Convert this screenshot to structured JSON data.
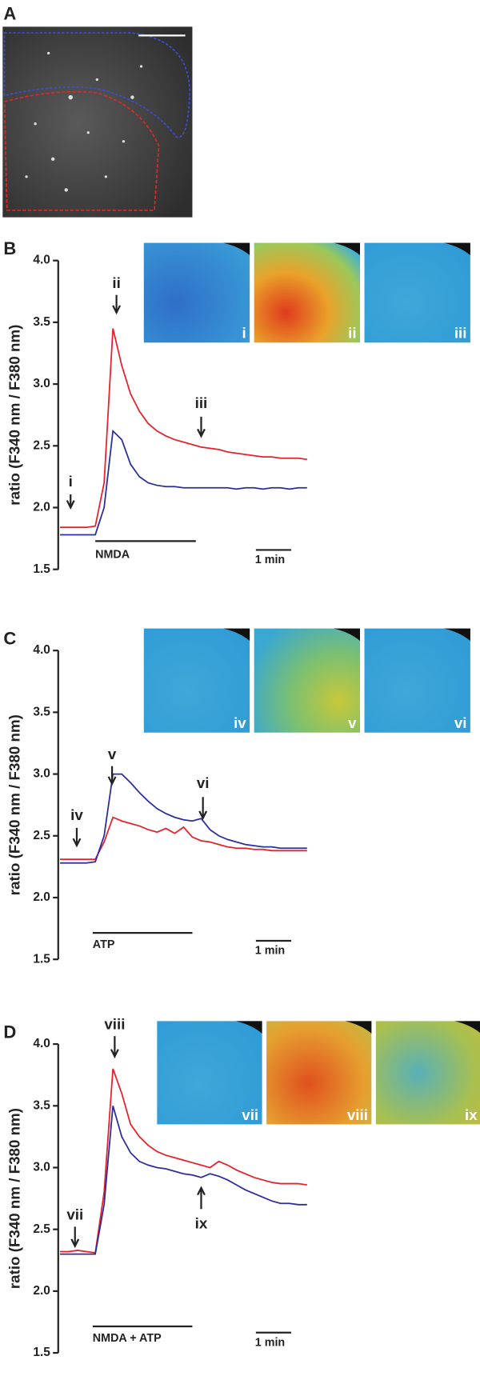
{
  "panel_a_label": "A",
  "chart_data": [
    {
      "type": "line",
      "panel_label": "B",
      "ylabel": "ratio (F340 nm / F380 nm)",
      "ylim": [
        1.5,
        4.0
      ],
      "yticks": [
        1.5,
        {
          "value": 2.0,
          "label": "2.0"
        },
        2.5,
        {
          "value": 3.0,
          "label": "3.0"
        },
        3.5,
        {
          "value": 4.0,
          "label": "4.0"
        }
      ],
      "series": [
        {
          "color": "#e8202a",
          "values": [
            1.84,
            1.84,
            1.84,
            1.84,
            1.85,
            2.2,
            3.45,
            3.15,
            2.92,
            2.78,
            2.68,
            2.62,
            2.58,
            2.55,
            2.53,
            2.51,
            2.49,
            2.48,
            2.47,
            2.45,
            2.44,
            2.43,
            2.42,
            2.41,
            2.41,
            2.4,
            2.4,
            2.4,
            2.39
          ]
        },
        {
          "color": "#2b2d9e",
          "values": [
            1.78,
            1.78,
            1.78,
            1.78,
            1.78,
            2.0,
            2.62,
            2.55,
            2.35,
            2.25,
            2.2,
            2.18,
            2.17,
            2.17,
            2.16,
            2.16,
            2.16,
            2.16,
            2.16,
            2.16,
            2.15,
            2.16,
            2.16,
            2.15,
            2.16,
            2.16,
            2.15,
            2.16,
            2.16
          ]
        }
      ],
      "annotations": [
        "i",
        "ii",
        "iii"
      ],
      "image_labels": [
        "i",
        "ii",
        "iii"
      ],
      "treatment": "NMDA",
      "scale_bar": "1 min"
    },
    {
      "type": "line",
      "panel_label": "C",
      "ylabel": "ratio (F340 nm / F380 nm)",
      "ylim": [
        1.5,
        4.0
      ],
      "yticks": [
        1.5,
        {
          "value": 2.0,
          "label": "2.0"
        },
        2.5,
        {
          "value": 3.0,
          "label": "3.0"
        },
        3.5,
        {
          "value": 4.0,
          "label": "4.0"
        }
      ],
      "series": [
        {
          "color": "#e8202a",
          "values": [
            2.31,
            2.31,
            2.31,
            2.31,
            2.31,
            2.45,
            2.65,
            2.62,
            2.6,
            2.58,
            2.55,
            2.53,
            2.56,
            2.52,
            2.57,
            2.49,
            2.46,
            2.45,
            2.43,
            2.41,
            2.4,
            2.4,
            2.39,
            2.39,
            2.38,
            2.38,
            2.38,
            2.38,
            2.38
          ]
        },
        {
          "color": "#2b2d9e",
          "values": [
            2.28,
            2.28,
            2.28,
            2.28,
            2.29,
            2.5,
            3.0,
            3.0,
            2.93,
            2.85,
            2.78,
            2.72,
            2.68,
            2.65,
            2.63,
            2.62,
            2.64,
            2.55,
            2.5,
            2.47,
            2.45,
            2.43,
            2.42,
            2.41,
            2.41,
            2.4,
            2.4,
            2.4,
            2.4
          ]
        }
      ],
      "annotations": [
        "iv",
        "v",
        "vi"
      ],
      "image_labels": [
        "iv",
        "v",
        "vi"
      ],
      "treatment": "ATP",
      "scale_bar": "1 min"
    },
    {
      "type": "line",
      "panel_label": "D",
      "ylabel": "ratio (F340 nm / F380 nm)",
      "ylim": [
        1.5,
        4.0
      ],
      "yticks": [
        1.5,
        {
          "value": 2.0,
          "label": "2.0"
        },
        2.5,
        {
          "value": 3.0,
          "label": "3.0"
        },
        3.5,
        {
          "value": 4.0,
          "label": "4.0"
        }
      ],
      "series": [
        {
          "color": "#e8202a",
          "values": [
            2.32,
            2.32,
            2.33,
            2.32,
            2.31,
            2.8,
            3.8,
            3.6,
            3.35,
            3.25,
            3.18,
            3.13,
            3.1,
            3.08,
            3.06,
            3.04,
            3.02,
            3.0,
            3.05,
            3.02,
            2.98,
            2.95,
            2.92,
            2.9,
            2.88,
            2.87,
            2.87,
            2.87,
            2.86
          ]
        },
        {
          "color": "#2b2d9e",
          "values": [
            2.3,
            2.3,
            2.3,
            2.3,
            2.3,
            2.7,
            3.5,
            3.25,
            3.12,
            3.05,
            3.02,
            3.0,
            2.99,
            2.97,
            2.95,
            2.94,
            2.92,
            2.95,
            2.93,
            2.9,
            2.86,
            2.82,
            2.79,
            2.76,
            2.73,
            2.71,
            2.71,
            2.7,
            2.7
          ]
        }
      ],
      "annotations": [
        "vii",
        "viii",
        "ix"
      ],
      "image_labels": [
        "vii",
        "viii",
        "ix"
      ],
      "treatment": "NMDA + ATP",
      "scale_bar": "1 min"
    }
  ]
}
